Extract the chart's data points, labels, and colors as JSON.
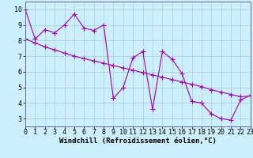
{
  "xlabel": "Windchill (Refroidissement éolien,°C)",
  "x": [
    0,
    1,
    2,
    3,
    4,
    5,
    6,
    7,
    8,
    9,
    10,
    11,
    12,
    13,
    14,
    15,
    16,
    17,
    18,
    19,
    20,
    21,
    22,
    23
  ],
  "line1": [
    10.0,
    8.1,
    8.7,
    8.5,
    9.0,
    9.7,
    8.8,
    8.65,
    9.0,
    4.3,
    5.0,
    6.9,
    7.3,
    3.6,
    7.3,
    6.8,
    5.9,
    4.1,
    4.0,
    3.3,
    3.0,
    2.9,
    4.2,
    4.5
  ],
  "line2": [
    8.1,
    7.85,
    7.6,
    7.4,
    7.2,
    7.0,
    6.85,
    6.7,
    6.55,
    6.4,
    6.25,
    6.1,
    5.95,
    5.8,
    5.65,
    5.5,
    5.35,
    5.2,
    5.05,
    4.85,
    4.7,
    4.55,
    4.4,
    4.45
  ],
  "line_color": "#9900aa",
  "bg_color": "#cceeff",
  "grid_color": "#aacccc",
  "xlim": [
    0,
    23
  ],
  "ylim": [
    2.5,
    10.5
  ],
  "yticks": [
    3,
    4,
    5,
    6,
    7,
    8,
    9,
    10
  ],
  "xticks": [
    0,
    1,
    2,
    3,
    4,
    5,
    6,
    7,
    8,
    9,
    10,
    11,
    12,
    13,
    14,
    15,
    16,
    17,
    18,
    19,
    20,
    21,
    22,
    23
  ],
  "marker": "+",
  "markersize": 4,
  "linewidth": 0.8,
  "xlabel_fontsize": 6.5,
  "tick_fontsize": 6
}
